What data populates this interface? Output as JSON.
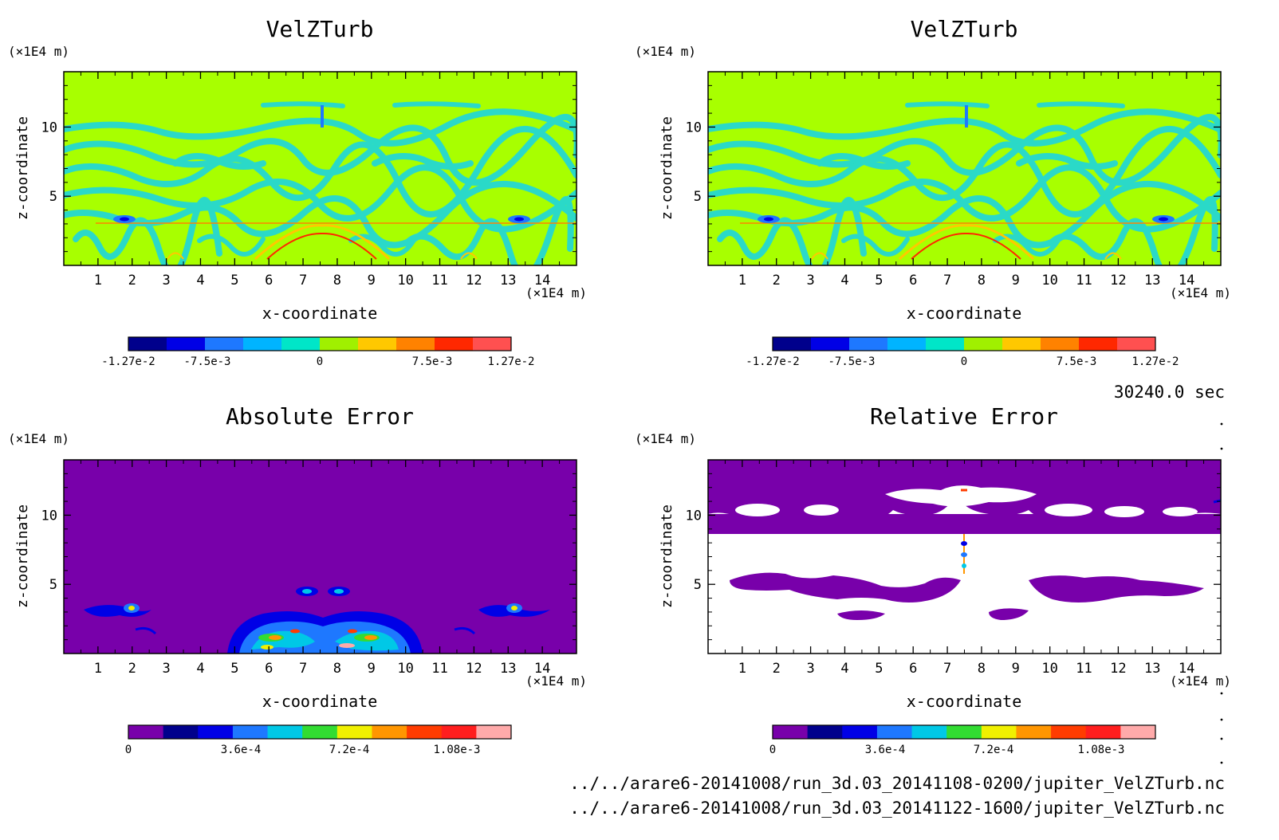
{
  "timestamp": "30240.0 sec",
  "files": [
    "../../arare6-20141008/run_3d.03_20141108-0200/jupiter_VelZTurb.nc",
    "../../arare6-20141008/run_3d.03_20141122-1600/jupiter_VelZTurb.nc"
  ],
  "colors": {
    "velz_palette": [
      "#00008c",
      "#0000e6",
      "#1e78ff",
      "#00b4ff",
      "#00e6c8",
      "#a0f000",
      "#ffc800",
      "#ff8200",
      "#ff2800",
      "#ff5050"
    ],
    "err_palette": [
      "#7800aa",
      "#00008c",
      "#0000e6",
      "#1e78ff",
      "#00c8e6",
      "#32dc32",
      "#f0f000",
      "#ff9600",
      "#ff3c00",
      "#ff1e1e",
      "#ffaaaa"
    ],
    "velz_background": "#a8ff00",
    "err_background": "#7800aa"
  },
  "chart_data": [
    {
      "id": "p1",
      "type": "heatmap",
      "title": "VelZTurb",
      "xlabel": "x-coordinate",
      "ylabel": "z-coordinate",
      "x_unit": "(×1E4 m)",
      "y_unit": "(×1E4 m)",
      "xlim": [
        0,
        15
      ],
      "ylim": [
        0,
        14
      ],
      "xticks": [
        1,
        2,
        3,
        4,
        5,
        6,
        7,
        8,
        9,
        10,
        11,
        12,
        13,
        14
      ],
      "yticks": [
        5,
        10
      ],
      "colorbar": {
        "range": [
          -0.0127,
          0.0127
        ],
        "labels": [
          "-1.27e-2",
          "-7.5e-3",
          "0",
          "7.5e-3",
          "1.27e-2"
        ]
      }
    },
    {
      "id": "p2",
      "type": "heatmap",
      "title": "VelZTurb",
      "xlabel": "x-coordinate",
      "ylabel": "z-coordinate",
      "x_unit": "(×1E4 m)",
      "y_unit": "(×1E4 m)",
      "xlim": [
        0,
        15
      ],
      "ylim": [
        0,
        14
      ],
      "xticks": [
        1,
        2,
        3,
        4,
        5,
        6,
        7,
        8,
        9,
        10,
        11,
        12,
        13,
        14
      ],
      "yticks": [
        5,
        10
      ],
      "colorbar": {
        "range": [
          -0.0127,
          0.0127
        ],
        "labels": [
          "-1.27e-2",
          "-7.5e-3",
          "0",
          "7.5e-3",
          "1.27e-2"
        ]
      }
    },
    {
      "id": "p3",
      "type": "heatmap",
      "title": "Absolute Error",
      "xlabel": "x-coordinate",
      "ylabel": "z-coordinate",
      "x_unit": "(×1E4 m)",
      "y_unit": "(×1E4 m)",
      "xlim": [
        0,
        15
      ],
      "ylim": [
        0,
        14
      ],
      "xticks": [
        1,
        2,
        3,
        4,
        5,
        6,
        7,
        8,
        9,
        10,
        11,
        12,
        13,
        14
      ],
      "yticks": [
        5,
        10
      ],
      "colorbar": {
        "range": [
          0,
          0.0012
        ],
        "labels": [
          "0",
          "3.6e-4",
          "7.2e-4",
          "1.08e-3"
        ]
      }
    },
    {
      "id": "p4",
      "type": "heatmap",
      "title": "Relative Error",
      "xlabel": "x-coordinate",
      "ylabel": "z-coordinate",
      "x_unit": "(×1E4 m)",
      "y_unit": "(×1E4 m)",
      "xlim": [
        0,
        15
      ],
      "ylim": [
        0,
        14
      ],
      "xticks": [
        1,
        2,
        3,
        4,
        5,
        6,
        7,
        8,
        9,
        10,
        11,
        12,
        13,
        14
      ],
      "yticks": [
        5,
        10
      ],
      "colorbar": {
        "range": [
          0,
          0.0012
        ],
        "labels": [
          "0",
          "3.6e-4",
          "7.2e-4",
          "1.08e-3"
        ]
      }
    }
  ]
}
